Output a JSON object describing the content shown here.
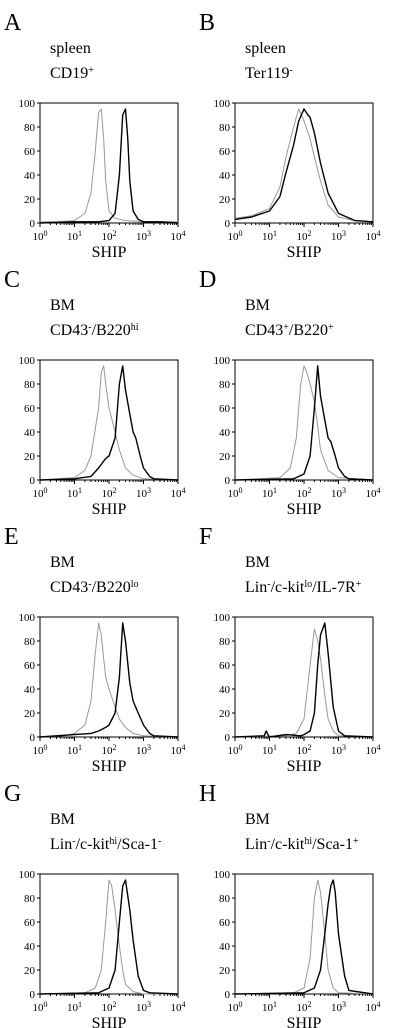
{
  "figure": {
    "chart_data": [
      {
        "panel": "A",
        "type": "line",
        "tissue": "spleen",
        "population_main": "CD19",
        "population_sup": "+",
        "population_tail": "",
        "population_tail_sup": "",
        "population_tail2": "",
        "population_tail2_sup": "",
        "population_tail3": "",
        "population_tail3_sup": "",
        "xlabel": "SHIP",
        "xscale": "log",
        "xlim": [
          1,
          10000
        ],
        "ylim": [
          0,
          100
        ],
        "yticks": [
          "0",
          "20",
          "40",
          "60",
          "80",
          "100"
        ],
        "xticks": [
          {
            "base": "10",
            "exp": "0"
          },
          {
            "base": "10",
            "exp": "1"
          },
          {
            "base": "10",
            "exp": "2"
          },
          {
            "base": "10",
            "exp": "3"
          },
          {
            "base": "10",
            "exp": "4"
          }
        ],
        "series": [
          {
            "style": "gray",
            "x": [
              1,
              3,
              10,
              20,
              30,
              40,
              50,
              60,
              70,
              80,
              100,
              150,
              300,
              1000,
              10000
            ],
            "y": [
              1,
              1,
              2,
              8,
              25,
              60,
              92,
              95,
              70,
              35,
              10,
              4,
              2,
              1,
              1
            ]
          },
          {
            "style": "black",
            "x": [
              1,
              10,
              50,
              100,
              150,
              200,
              250,
              300,
              350,
              400,
              500,
              700,
              1000,
              3000,
              10000
            ],
            "y": [
              0,
              1,
              1,
              2,
              8,
              40,
              90,
              95,
              70,
              35,
              10,
              3,
              1,
              1,
              0
            ]
          }
        ]
      },
      {
        "panel": "B",
        "type": "line",
        "tissue": "spleen",
        "population_main": "Ter119",
        "population_sup": "-",
        "population_tail": "",
        "population_tail_sup": "",
        "population_tail2": "",
        "population_tail2_sup": "",
        "population_tail3": "",
        "population_tail3_sup": "",
        "xlabel": "SHIP",
        "xscale": "log",
        "xlim": [
          1,
          10000
        ],
        "ylim": [
          0,
          100
        ],
        "yticks": [
          "0",
          "20",
          "40",
          "60",
          "80",
          "100"
        ],
        "xticks": [
          {
            "base": "10",
            "exp": "0"
          },
          {
            "base": "10",
            "exp": "1"
          },
          {
            "base": "10",
            "exp": "2"
          },
          {
            "base": "10",
            "exp": "3"
          },
          {
            "base": "10",
            "exp": "4"
          }
        ],
        "series": [
          {
            "style": "gray",
            "x": [
              1,
              3,
              10,
              20,
              30,
              50,
              70,
              100,
              150,
              200,
              300,
              500,
              1000,
              3000,
              10000
            ],
            "y": [
              4,
              6,
              12,
              30,
              55,
              80,
              95,
              85,
              70,
              55,
              35,
              15,
              5,
              2,
              1
            ]
          },
          {
            "style": "black",
            "x": [
              1,
              3,
              10,
              20,
              30,
              50,
              70,
              100,
              130,
              150,
              200,
              300,
              500,
              1000,
              3000,
              10000
            ],
            "y": [
              3,
              5,
              10,
              22,
              42,
              65,
              85,
              95,
              90,
              88,
              75,
              50,
              25,
              8,
              2,
              1
            ]
          }
        ]
      },
      {
        "panel": "C",
        "type": "line",
        "tissue": "BM",
        "population_main": "CD43",
        "population_sup": "-",
        "population_tail": "/B220",
        "population_tail_sup": "hi",
        "population_tail2": "",
        "population_tail2_sup": "",
        "population_tail3": "",
        "population_tail3_sup": "",
        "xlabel": "SHIP",
        "xscale": "log",
        "xlim": [
          1,
          10000
        ],
        "ylim": [
          0,
          100
        ],
        "yticks": [
          "0",
          "20",
          "40",
          "60",
          "80",
          "100"
        ],
        "xticks": [
          {
            "base": "10",
            "exp": "0"
          },
          {
            "base": "10",
            "exp": "1"
          },
          {
            "base": "10",
            "exp": "2"
          },
          {
            "base": "10",
            "exp": "3"
          },
          {
            "base": "10",
            "exp": "4"
          }
        ],
        "series": [
          {
            "style": "gray",
            "x": [
              1,
              10,
              20,
              30,
              50,
              60,
              70,
              80,
              100,
              150,
              200,
              300,
              500,
              1000,
              10000
            ],
            "y": [
              0,
              2,
              8,
              20,
              60,
              90,
              95,
              80,
              60,
              40,
              25,
              10,
              4,
              1,
              0
            ]
          },
          {
            "style": "black",
            "x": [
              1,
              10,
              30,
              50,
              80,
              100,
              150,
              200,
              250,
              300,
              400,
              500,
              600,
              800,
              1000,
              1500,
              2000,
              10000
            ],
            "y": [
              0,
              1,
              3,
              10,
              18,
              20,
              35,
              80,
              95,
              75,
              55,
              40,
              35,
              20,
              10,
              3,
              1,
              0
            ]
          }
        ]
      },
      {
        "panel": "D",
        "type": "line",
        "tissue": "BM",
        "population_main": "CD43",
        "population_sup": "+",
        "population_tail": "/B220",
        "population_tail_sup": "+",
        "population_tail2": "",
        "population_tail2_sup": "",
        "population_tail3": "",
        "population_tail3_sup": "",
        "xlabel": "SHIP",
        "xscale": "log",
        "xlim": [
          1,
          10000
        ],
        "ylim": [
          0,
          100
        ],
        "yticks": [
          "0",
          "20",
          "40",
          "60",
          "80",
          "100"
        ],
        "xticks": [
          {
            "base": "10",
            "exp": "0"
          },
          {
            "base": "10",
            "exp": "1"
          },
          {
            "base": "10",
            "exp": "2"
          },
          {
            "base": "10",
            "exp": "3"
          },
          {
            "base": "10",
            "exp": "4"
          }
        ],
        "series": [
          {
            "style": "gray",
            "x": [
              1,
              20,
              40,
              60,
              80,
              100,
              120,
              150,
              200,
              250,
              300,
              500,
              1000,
              10000
            ],
            "y": [
              0,
              2,
              10,
              35,
              80,
              95,
              90,
              80,
              65,
              45,
              25,
              8,
              2,
              0
            ]
          },
          {
            "style": "black",
            "x": [
              1,
              50,
              100,
              150,
              200,
              250,
              300,
              400,
              500,
              600,
              800,
              1000,
              1500,
              2000,
              10000
            ],
            "y": [
              0,
              1,
              5,
              20,
              60,
              95,
              70,
              50,
              35,
              32,
              20,
              10,
              3,
              1,
              0
            ]
          }
        ]
      },
      {
        "panel": "E",
        "type": "line",
        "tissue": "BM",
        "population_main": "CD43",
        "population_sup": "-",
        "population_tail": "/B220",
        "population_tail_sup": "lo",
        "population_tail2": "",
        "population_tail2_sup": "",
        "population_tail3": "",
        "population_tail3_sup": "",
        "xlabel": "SHIP",
        "xscale": "log",
        "xlim": [
          1,
          10000
        ],
        "ylim": [
          0,
          100
        ],
        "yticks": [
          "0",
          "20",
          "40",
          "60",
          "80",
          "100"
        ],
        "xticks": [
          {
            "base": "10",
            "exp": "0"
          },
          {
            "base": "10",
            "exp": "1"
          },
          {
            "base": "10",
            "exp": "2"
          },
          {
            "base": "10",
            "exp": "3"
          },
          {
            "base": "10",
            "exp": "4"
          }
        ],
        "series": [
          {
            "style": "gray",
            "x": [
              1,
              5,
              10,
              20,
              30,
              40,
              50,
              60,
              70,
              80,
              100,
              150,
              200,
              300,
              500,
              1000,
              10000
            ],
            "y": [
              0,
              1,
              3,
              10,
              30,
              70,
              95,
              85,
              65,
              50,
              40,
              25,
              15,
              8,
              3,
              1,
              0
            ]
          },
          {
            "style": "black",
            "x": [
              1,
              10,
              30,
              50,
              80,
              100,
              150,
              200,
              250,
              300,
              400,
              500,
              700,
              1000,
              1500,
              2000,
              10000
            ],
            "y": [
              0,
              2,
              3,
              5,
              8,
              10,
              20,
              50,
              95,
              80,
              45,
              30,
              20,
              10,
              3,
              1,
              0
            ]
          }
        ]
      },
      {
        "panel": "F",
        "type": "line",
        "tissue": "BM",
        "population_main": "Lin",
        "population_sup": "-",
        "population_tail": "/c-kit",
        "population_tail_sup": "lo",
        "population_tail2": "/IL-7R",
        "population_tail2_sup": "+",
        "population_tail3": "",
        "population_tail3_sup": "",
        "xlabel": "SHIP",
        "xscale": "log",
        "xlim": [
          1,
          10000
        ],
        "ylim": [
          0,
          100
        ],
        "yticks": [
          "0",
          "20",
          "40",
          "60",
          "80",
          "100"
        ],
        "xticks": [
          {
            "base": "10",
            "exp": "0"
          },
          {
            "base": "10",
            "exp": "1"
          },
          {
            "base": "10",
            "exp": "2"
          },
          {
            "base": "10",
            "exp": "3"
          },
          {
            "base": "10",
            "exp": "4"
          }
        ],
        "series": [
          {
            "style": "gray",
            "x": [
              1,
              30,
              60,
              100,
              150,
              200,
              250,
              300,
              400,
              500,
              700,
              1000,
              10000
            ],
            "y": [
              0,
              1,
              3,
              15,
              60,
              90,
              80,
              65,
              35,
              15,
              5,
              1,
              0
            ]
          },
          {
            "style": "black",
            "x": [
              1,
              7,
              8,
              9,
              10,
              30,
              80,
              100,
              150,
              200,
              250,
              300,
              400,
              500,
              700,
              1000,
              1500,
              10000
            ],
            "y": [
              0,
              1,
              5,
              2,
              0,
              2,
              1,
              2,
              5,
              20,
              60,
              85,
              95,
              70,
              25,
              5,
              1,
              0
            ]
          }
        ]
      },
      {
        "panel": "G",
        "type": "line",
        "tissue": "BM",
        "population_main": "Lin",
        "population_sup": "-",
        "population_tail": "/c-kit",
        "population_tail_sup": "hi",
        "population_tail2": "/Sca-1",
        "population_tail2_sup": "-",
        "population_tail3": "",
        "population_tail3_sup": "",
        "xlabel": "SHIP",
        "xscale": "log",
        "xlim": [
          1,
          10000
        ],
        "ylim": [
          0,
          100
        ],
        "yticks": [
          "0",
          "20",
          "40",
          "60",
          "80",
          "100"
        ],
        "xticks": [
          {
            "base": "10",
            "exp": "0"
          },
          {
            "base": "10",
            "exp": "1"
          },
          {
            "base": "10",
            "exp": "2"
          },
          {
            "base": "10",
            "exp": "3"
          },
          {
            "base": "10",
            "exp": "4"
          }
        ],
        "series": [
          {
            "style": "gray",
            "x": [
              1,
              20,
              40,
              60,
              80,
              100,
              120,
              150,
              200,
              250,
              300,
              500,
              1000,
              10000
            ],
            "y": [
              0,
              1,
              5,
              20,
              60,
              95,
              90,
              70,
              40,
              20,
              8,
              2,
              0,
              0
            ]
          },
          {
            "style": "black",
            "x": [
              1,
              50,
              100,
              150,
              200,
              250,
              300,
              400,
              500,
              700,
              1000,
              1500,
              10000
            ],
            "y": [
              0,
              1,
              5,
              20,
              60,
              90,
              95,
              70,
              45,
              15,
              3,
              1,
              0
            ]
          }
        ]
      },
      {
        "panel": "H",
        "type": "line",
        "tissue": "BM",
        "population_main": "Lin",
        "population_sup": "-",
        "population_tail": "/c-kit",
        "population_tail_sup": "hi",
        "population_tail2": "/Sca-1",
        "population_tail2_sup": "+",
        "population_tail3": "",
        "population_tail3_sup": "",
        "xlabel": "SHIP",
        "xscale": "log",
        "xlim": [
          1,
          10000
        ],
        "ylim": [
          0,
          100
        ],
        "yticks": [
          "0",
          "20",
          "40",
          "60",
          "80",
          "100"
        ],
        "xticks": [
          {
            "base": "10",
            "exp": "0"
          },
          {
            "base": "10",
            "exp": "1"
          },
          {
            "base": "10",
            "exp": "2"
          },
          {
            "base": "10",
            "exp": "3"
          },
          {
            "base": "10",
            "exp": "4"
          }
        ],
        "series": [
          {
            "style": "gray",
            "x": [
              1,
              50,
              100,
              150,
              200,
              250,
              300,
              400,
              500,
              700,
              1000,
              10000
            ],
            "y": [
              0,
              1,
              5,
              30,
              80,
              95,
              85,
              50,
              20,
              5,
              1,
              0
            ]
          },
          {
            "style": "black",
            "x": [
              1,
              100,
              200,
              300,
              400,
              500,
              600,
              700,
              800,
              1000,
              1500,
              2000,
              10000
            ],
            "y": [
              0,
              1,
              5,
              20,
              50,
              75,
              90,
              95,
              85,
              50,
              15,
              3,
              0
            ]
          }
        ]
      }
    ]
  },
  "colors": {
    "line_black": "#000000",
    "line_gray": "#999999",
    "axis": "#000000",
    "background": "#ffffff"
  }
}
